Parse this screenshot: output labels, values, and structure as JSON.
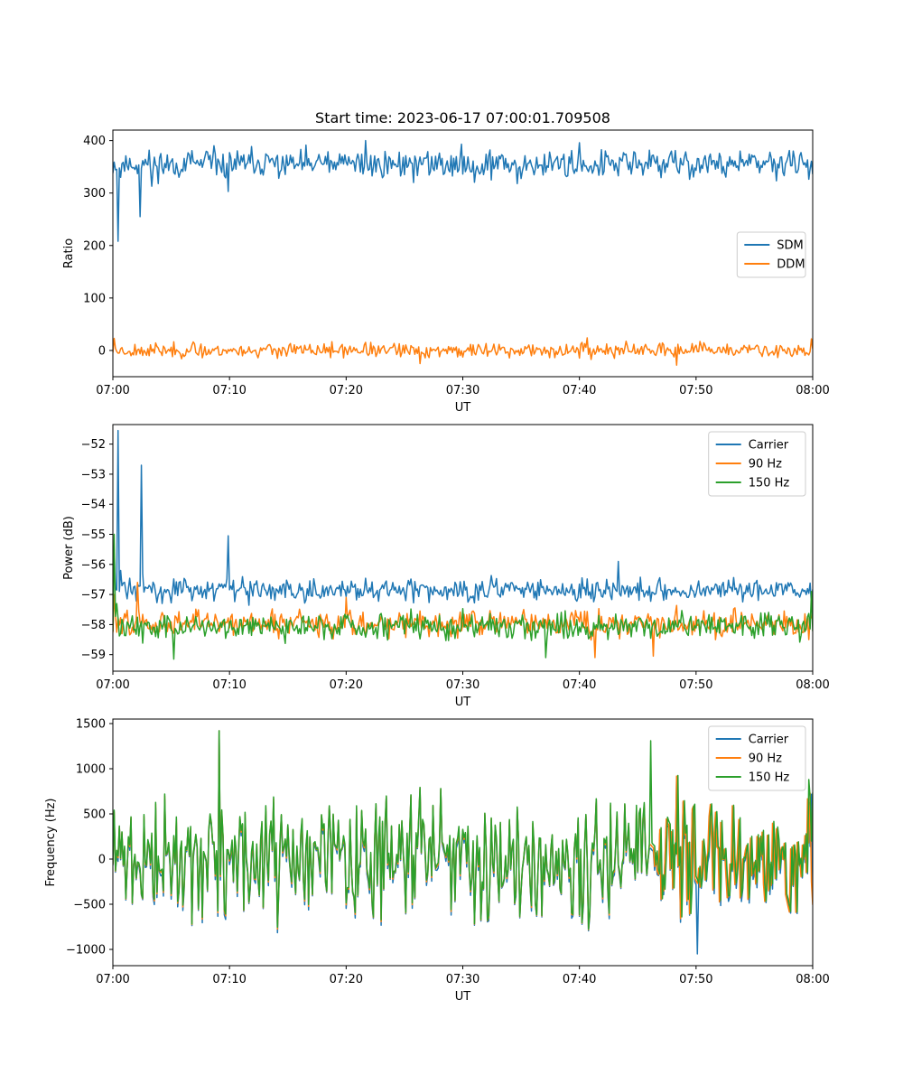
{
  "figure_title": "Start time: 2023-06-17 07:00:01.709508",
  "colors": {
    "blue": "#1f77b4",
    "orange": "#ff7f0e",
    "green": "#2ca02c"
  },
  "chart_data": [
    {
      "type": "line",
      "title": "Start time: 2023-06-17 07:00:01.709508",
      "xlabel": "UT",
      "ylabel": "Ratio",
      "xlim": [
        "07:00",
        "08:00"
      ],
      "ylim": [
        -50,
        420
      ],
      "x_ticks": [
        "07:00",
        "07:10",
        "07:20",
        "07:30",
        "07:40",
        "07:50",
        "08:00"
      ],
      "y_ticks": [
        0,
        100,
        200,
        300,
        400
      ],
      "legend": "center-right",
      "grid": false,
      "series": [
        {
          "name": "SDM",
          "color": "#1f77b4",
          "baseline": 355,
          "noise": 18,
          "seed": 11,
          "spikes": [
            {
              "time": "07:00:20",
              "value": 345
            },
            {
              "time": "07:00:25",
              "value": 208
            },
            {
              "time": "07:00:40",
              "value": 330
            },
            {
              "time": "07:02:20",
              "value": 255
            },
            {
              "time": "07:03:20",
              "value": 313
            },
            {
              "time": "07:09:50",
              "value": 303
            },
            {
              "time": "07:21:40",
              "value": 400
            },
            {
              "time": "07:40:00",
              "value": 396
            },
            {
              "time": "07:34:40",
              "value": 318
            }
          ]
        },
        {
          "name": "DDM",
          "color": "#ff7f0e",
          "baseline": 0,
          "noise": 9,
          "seed": 23,
          "spikes": [
            {
              "time": "07:00:05",
              "value": 23
            },
            {
              "time": "07:26:20",
              "value": -25
            },
            {
              "time": "07:40:40",
              "value": 24
            },
            {
              "time": "07:48:20",
              "value": -28
            },
            {
              "time": "07:59:50",
              "value": 22
            }
          ]
        }
      ]
    },
    {
      "type": "line",
      "title": "",
      "xlabel": "UT",
      "ylabel": "Power (dB)",
      "xlim": [
        "07:00",
        "08:00"
      ],
      "ylim": [
        -59.55,
        -51.35
      ],
      "x_ticks": [
        "07:00",
        "07:10",
        "07:20",
        "07:30",
        "07:40",
        "07:50",
        "08:00"
      ],
      "y_ticks": [
        -52,
        -53,
        -54,
        -55,
        -56,
        -57,
        -58,
        -59
      ],
      "legend": "top-right",
      "grid": false,
      "series": [
        {
          "name": "Carrier",
          "color": "#1f77b4",
          "baseline": -56.85,
          "noise": 0.25,
          "seed": 31,
          "spikes": [
            {
              "time": "07:00:10",
              "value": -55.5
            },
            {
              "time": "07:00:25",
              "value": -51.55
            },
            {
              "time": "07:00:40",
              "value": -56.2
            },
            {
              "time": "07:02:25",
              "value": -52.7
            },
            {
              "time": "07:02:35",
              "value": -56.3
            },
            {
              "time": "07:09:50",
              "value": -55.05
            },
            {
              "time": "07:43:20",
              "value": -55.9
            }
          ]
        },
        {
          "name": "90 Hz",
          "color": "#ff7f0e",
          "baseline": -57.95,
          "noise": 0.3,
          "seed": 47,
          "spikes": [
            {
              "time": "07:00:05",
              "value": -57.0
            },
            {
              "time": "07:02:10",
              "value": -56.6
            },
            {
              "time": "07:20:00",
              "value": -57.1
            },
            {
              "time": "07:41:20",
              "value": -59.1
            },
            {
              "time": "07:46:20",
              "value": -59.05
            },
            {
              "time": "07:59:40",
              "value": -58.5
            }
          ]
        },
        {
          "name": "150 Hz",
          "color": "#2ca02c",
          "baseline": -58.05,
          "noise": 0.3,
          "seed": 59,
          "spikes": [
            {
              "time": "07:00:05",
              "value": -55.0
            },
            {
              "time": "07:00:20",
              "value": -57.3
            },
            {
              "time": "07:05:10",
              "value": -59.15
            },
            {
              "time": "07:37:10",
              "value": -59.1
            },
            {
              "time": "07:59:50",
              "value": -56.9
            }
          ]
        }
      ]
    },
    {
      "type": "line",
      "title": "",
      "xlabel": "UT",
      "ylabel": "Frequency (Hz)",
      "xlim": [
        "07:00",
        "08:00"
      ],
      "ylim": [
        -1180,
        1550
      ],
      "x_ticks": [
        "07:00",
        "07:10",
        "07:20",
        "07:30",
        "07:40",
        "07:50",
        "08:00"
      ],
      "y_ticks": [
        1500,
        1000,
        500,
        0,
        -500,
        -1000
      ],
      "legend": "top-right",
      "grid": false,
      "series": [
        {
          "name": "Carrier",
          "color": "#1f77b4",
          "baseline": 0,
          "noise": 420,
          "seed": 71,
          "offset": -60,
          "spikes": [
            {
              "time": "07:09:10",
              "value": 1420
            },
            {
              "time": "07:50:10",
              "value": -1050
            }
          ]
        },
        {
          "name": "90 Hz",
          "color": "#ff7f0e",
          "baseline": 0,
          "noise": 420,
          "seed": 71,
          "offset": -20,
          "spikes": [
            {
              "time": "07:09:10",
              "value": 1420
            }
          ]
        },
        {
          "name": "150 Hz",
          "color": "#2ca02c",
          "baseline": 0,
          "noise": 420,
          "seed": 71,
          "offset": 0,
          "spikes": [
            {
              "time": "07:09:10",
              "value": 1420
            },
            {
              "time": "07:46:10",
              "value": 1310
            },
            {
              "time": "07:59:40",
              "value": 880
            }
          ]
        }
      ]
    }
  ]
}
